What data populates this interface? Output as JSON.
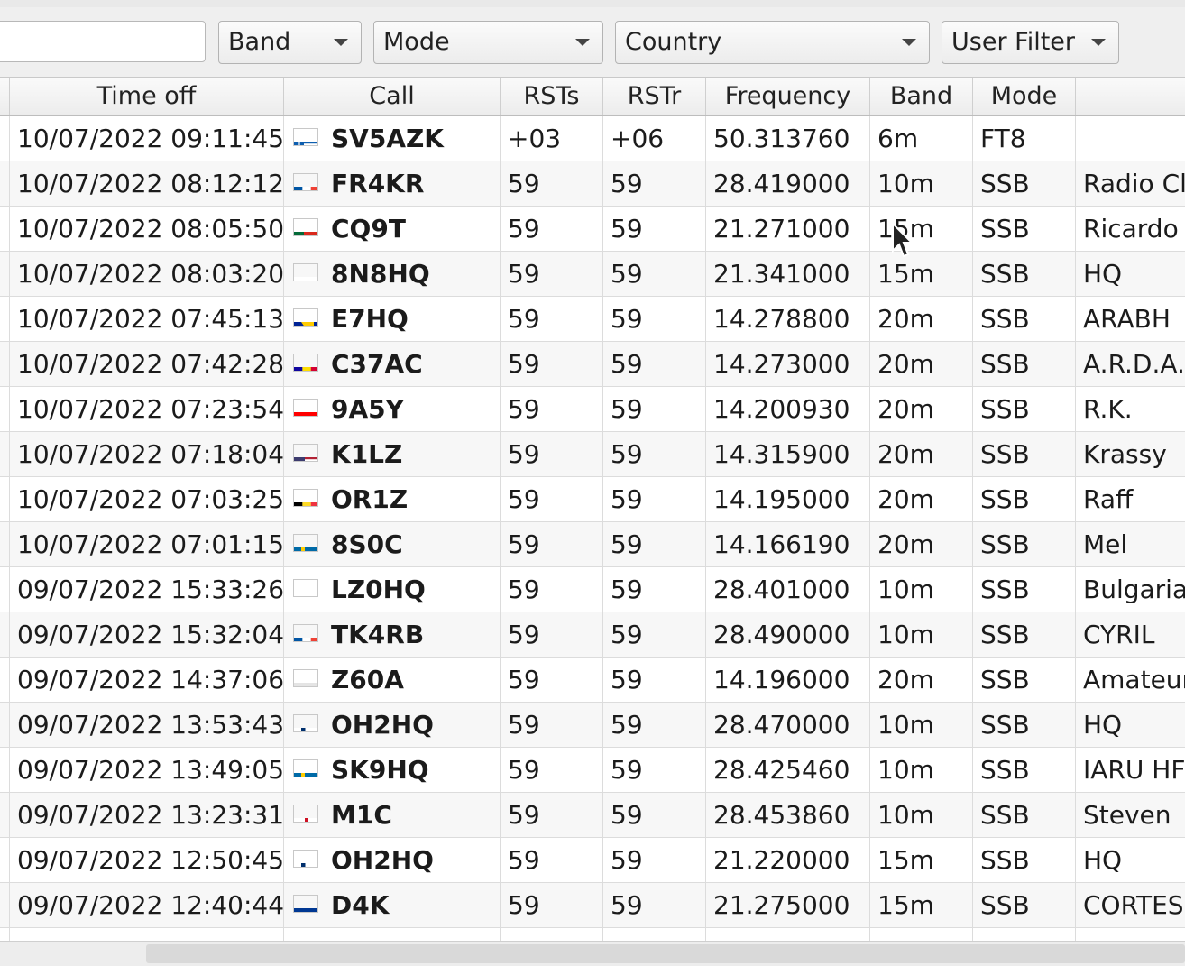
{
  "filters": {
    "search_value": "",
    "band": "Band",
    "mode": "Mode",
    "country": "Country",
    "user_filter": "User Filter"
  },
  "columns": [
    "Time off",
    "Call",
    "RSTs",
    "RSTr",
    "Frequency",
    "Band",
    "Mode",
    ""
  ],
  "rows": [
    {
      "time": "10/07/2022 09:11:45",
      "flag": "greece-flag-icon",
      "call": "SV5AZK",
      "rsts": "+03",
      "rstr": "+06",
      "freq": "50.313760",
      "band": "6m",
      "mode": "FT8",
      "name": ""
    },
    {
      "time": "10/07/2022 08:12:12",
      "flag": "france-flag-icon",
      "call": "FR4KR",
      "rsts": "59",
      "rstr": "59",
      "freq": "28.419000",
      "band": "10m",
      "mode": "SSB",
      "name": "Radio Clu"
    },
    {
      "time": "10/07/2022 08:05:50",
      "flag": "portugal-flag-icon",
      "call": "CQ9T",
      "rsts": "59",
      "rstr": "59",
      "freq": "21.271000",
      "band": "15m",
      "mode": "SSB",
      "name": "Ricardo"
    },
    {
      "time": "10/07/2022 08:03:20",
      "flag": "japan-flag-icon",
      "call": "8N8HQ",
      "rsts": "59",
      "rstr": "59",
      "freq": "21.341000",
      "band": "15m",
      "mode": "SSB",
      "name": "HQ"
    },
    {
      "time": "10/07/2022 07:45:13",
      "flag": "bosnia-flag-icon",
      "call": "E7HQ",
      "rsts": "59",
      "rstr": "59",
      "freq": "14.278800",
      "band": "20m",
      "mode": "SSB",
      "name": "ARABH"
    },
    {
      "time": "10/07/2022 07:42:28",
      "flag": "andorra-flag-icon",
      "call": "C37AC",
      "rsts": "59",
      "rstr": "59",
      "freq": "14.273000",
      "band": "20m",
      "mode": "SSB",
      "name": "A.R.D.A."
    },
    {
      "time": "10/07/2022 07:23:54",
      "flag": "croatia-flag-icon",
      "call": "9A5Y",
      "rsts": "59",
      "rstr": "59",
      "freq": "14.200930",
      "band": "20m",
      "mode": "SSB",
      "name": "R.K."
    },
    {
      "time": "10/07/2022 07:18:04",
      "flag": "usa-flag-icon",
      "call": "K1LZ",
      "rsts": "59",
      "rstr": "59",
      "freq": "14.315900",
      "band": "20m",
      "mode": "SSB",
      "name": "Krassy"
    },
    {
      "time": "10/07/2022 07:03:25",
      "flag": "belgium-flag-icon",
      "call": "OR1Z",
      "rsts": "59",
      "rstr": "59",
      "freq": "14.195000",
      "band": "20m",
      "mode": "SSB",
      "name": "Raff"
    },
    {
      "time": "10/07/2022 07:01:15",
      "flag": "sweden-flag-icon",
      "call": "8S0C",
      "rsts": "59",
      "rstr": "59",
      "freq": "14.166190",
      "band": "20m",
      "mode": "SSB",
      "name": "Mel"
    },
    {
      "time": "09/07/2022 15:33:26",
      "flag": "bulgaria-flag-icon",
      "call": "LZ0HQ",
      "rsts": "59",
      "rstr": "59",
      "freq": "28.401000",
      "band": "10m",
      "mode": "SSB",
      "name": "Bulgaria"
    },
    {
      "time": "09/07/2022 15:32:04",
      "flag": "france-flag-icon",
      "call": "TK4RB",
      "rsts": "59",
      "rstr": "59",
      "freq": "28.490000",
      "band": "10m",
      "mode": "SSB",
      "name": "CYRIL"
    },
    {
      "time": "09/07/2022 14:37:06",
      "flag": "unknown-flag-icon",
      "call": "Z60A",
      "rsts": "59",
      "rstr": "59",
      "freq": "14.196000",
      "band": "20m",
      "mode": "SSB",
      "name": "Amateur"
    },
    {
      "time": "09/07/2022 13:53:43",
      "flag": "finland-flag-icon",
      "call": "OH2HQ",
      "rsts": "59",
      "rstr": "59",
      "freq": "28.470000",
      "band": "10m",
      "mode": "SSB",
      "name": "HQ"
    },
    {
      "time": "09/07/2022 13:49:05",
      "flag": "sweden-flag-icon",
      "call": "SK9HQ",
      "rsts": "59",
      "rstr": "59",
      "freq": "28.425460",
      "band": "10m",
      "mode": "SSB",
      "name": "IARU HF"
    },
    {
      "time": "09/07/2022 13:23:31",
      "flag": "england-flag-icon",
      "call": "M1C",
      "rsts": "59",
      "rstr": "59",
      "freq": "28.453860",
      "band": "10m",
      "mode": "SSB",
      "name": "Steven"
    },
    {
      "time": "09/07/2022 12:50:45",
      "flag": "finland-flag-icon",
      "call": "OH2HQ",
      "rsts": "59",
      "rstr": "59",
      "freq": "21.220000",
      "band": "15m",
      "mode": "SSB",
      "name": "HQ"
    },
    {
      "time": "09/07/2022 12:40:44",
      "flag": "cape-verde-flag-icon",
      "call": "D4K",
      "rsts": "59",
      "rstr": "59",
      "freq": "21.275000",
      "band": "15m",
      "mode": "SSB",
      "name": "CORTESI"
    }
  ]
}
